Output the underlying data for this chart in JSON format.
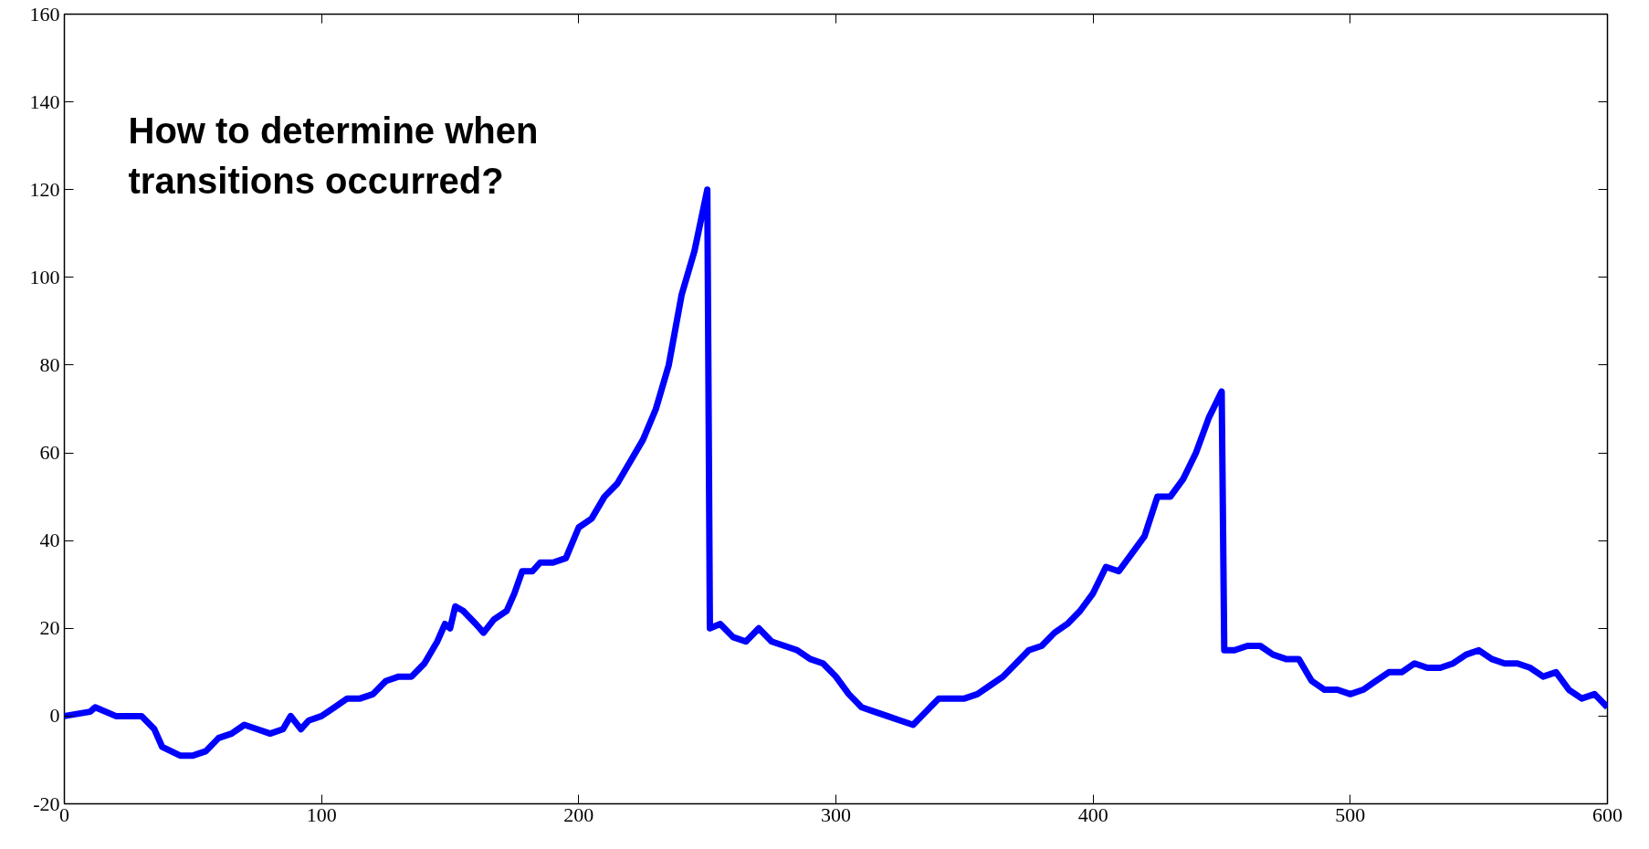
{
  "chart_data": {
    "type": "line",
    "annotations": [
      "How to determine when\ntransitions occurred?"
    ],
    "x": [
      0,
      10,
      12,
      20,
      30,
      35,
      38,
      45,
      50,
      55,
      60,
      65,
      70,
      75,
      80,
      85,
      88,
      92,
      95,
      100,
      105,
      110,
      115,
      120,
      125,
      130,
      135,
      140,
      145,
      148,
      150,
      152,
      155,
      160,
      163,
      167,
      172,
      175,
      178,
      182,
      185,
      190,
      195,
      200,
      205,
      210,
      215,
      220,
      225,
      230,
      235,
      240,
      245,
      250,
      251,
      255,
      260,
      265,
      270,
      275,
      280,
      285,
      290,
      295,
      300,
      305,
      310,
      315,
      320,
      325,
      330,
      335,
      340,
      345,
      350,
      355,
      360,
      365,
      370,
      375,
      380,
      385,
      390,
      395,
      400,
      405,
      410,
      415,
      420,
      425,
      430,
      435,
      440,
      445,
      450,
      451,
      455,
      460,
      465,
      470,
      475,
      480,
      485,
      490,
      495,
      500,
      505,
      510,
      515,
      520,
      525,
      530,
      535,
      540,
      545,
      550,
      555,
      560,
      565,
      570,
      575,
      580,
      585,
      590,
      595,
      600
    ],
    "series": [
      {
        "color": "#0000ff",
        "values": [
          0,
          1,
          2,
          0,
          0,
          -3,
          -7,
          -9,
          -9,
          -8,
          -5,
          -4,
          -2,
          -3,
          -4,
          -3,
          0,
          -3,
          -1,
          0,
          2,
          4,
          4,
          5,
          8,
          9,
          9,
          12,
          17,
          21,
          20,
          25,
          24,
          21,
          19,
          22,
          24,
          28,
          33,
          33,
          35,
          35,
          36,
          43,
          45,
          50,
          53,
          58,
          63,
          70,
          80,
          96,
          106,
          120,
          20,
          21,
          18,
          17,
          20,
          17,
          16,
          15,
          13,
          12,
          9,
          5,
          2,
          1,
          0,
          -1,
          -2,
          1,
          4,
          4,
          4,
          5,
          7,
          9,
          12,
          15,
          16,
          19,
          21,
          24,
          28,
          34,
          33,
          37,
          41,
          50,
          50,
          54,
          60,
          68,
          74,
          15,
          15,
          16,
          16,
          14,
          13,
          13,
          8,
          6,
          6,
          5,
          6,
          8,
          10,
          10,
          12,
          11,
          11,
          12,
          14,
          15,
          13,
          12,
          12,
          11,
          9,
          10,
          6,
          4,
          5,
          2
        ]
      }
    ],
    "xlim": [
      0,
      600
    ],
    "ylim": [
      -20,
      160
    ],
    "xticks": [
      0,
      100,
      200,
      300,
      400,
      500,
      600
    ],
    "yticks": [
      -20,
      0,
      20,
      40,
      60,
      80,
      100,
      120,
      140,
      160
    ],
    "grid": false,
    "line_style": "solid",
    "marker": "none"
  }
}
